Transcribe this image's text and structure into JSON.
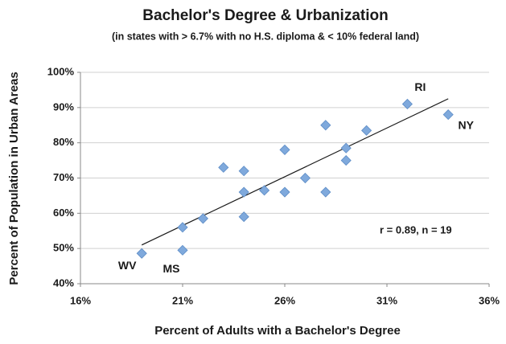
{
  "chart_data": {
    "type": "scatter",
    "title": "Bachelor's Degree & Urbanization",
    "subtitle": "(in states with > 6.7% with no H.S. diploma & < 10% federal land)",
    "x_label": "Percent of Adults with a Bachelor's Degree",
    "y_label": "Percent of Population in Urban Areas",
    "annotation": "r =  0.89, n = 19",
    "x": [
      19,
      21,
      21,
      22,
      23,
      24,
      24,
      24,
      25,
      26,
      26,
      27,
      28,
      28,
      29,
      29,
      30,
      32,
      34
    ],
    "values": [
      48.6,
      49.5,
      56,
      58.5,
      73,
      72,
      66,
      59,
      66.5,
      78,
      66,
      70,
      85,
      66,
      78.5,
      75,
      83.5,
      91,
      88
    ],
    "point_labels": [
      "WV",
      "MS",
      null,
      null,
      null,
      null,
      null,
      null,
      null,
      null,
      null,
      null,
      null,
      null,
      null,
      null,
      null,
      "RI",
      "NY"
    ],
    "color": "#7fa9dc",
    "trendline": {
      "x": [
        19,
        34
      ],
      "y": [
        51,
        92.5
      ],
      "color": "#1a1a1a"
    },
    "xlim": [
      16,
      36
    ],
    "xticks": [
      {
        "value": 16,
        "label": "16%"
      },
      {
        "value": 21,
        "label": "21%"
      },
      {
        "value": 26,
        "label": "26%"
      },
      {
        "value": 31,
        "label": "31%"
      },
      {
        "value": 36,
        "label": "36%"
      }
    ],
    "ylim": [
      40,
      100
    ],
    "yticks": [
      {
        "value": 40,
        "label": "40%"
      },
      {
        "value": 50,
        "label": "50%"
      },
      {
        "value": 60,
        "label": "60%"
      },
      {
        "value": 70,
        "label": "70%"
      },
      {
        "value": 80,
        "label": "80%"
      },
      {
        "value": 90,
        "label": "90%"
      },
      {
        "value": 100,
        "label": "100%"
      }
    ],
    "grid": true
  }
}
